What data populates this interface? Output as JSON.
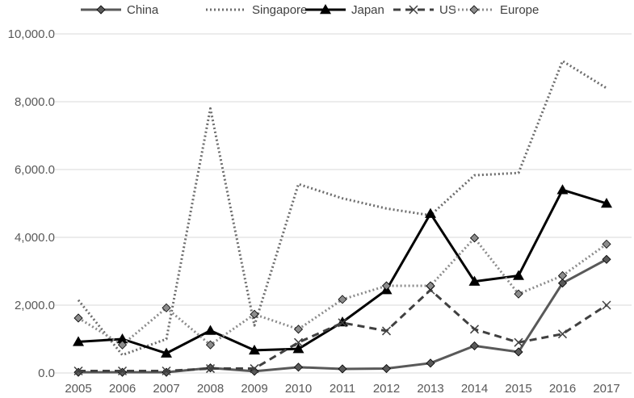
{
  "chart_data": {
    "type": "line",
    "title": "",
    "xlabel": "",
    "ylabel": "",
    "ylim": [
      0,
      10000
    ],
    "y_ticks": [
      "0.0",
      "2,000.0",
      "4,000.0",
      "6,000.0",
      "8,000.0",
      "10,000.0"
    ],
    "y_tick_values": [
      0,
      2000,
      4000,
      6000,
      8000,
      10000
    ],
    "categories": [
      "2005",
      "2006",
      "2007",
      "2008",
      "2009",
      "2010",
      "2011",
      "2012",
      "2013",
      "2014",
      "2015",
      "2016",
      "2017"
    ],
    "grid": "horizontal",
    "legend_position": "top",
    "series": [
      {
        "name": "China",
        "color": "#595959",
        "style": "solid",
        "marker": "diamond",
        "values": [
          20,
          20,
          20,
          150,
          50,
          170,
          120,
          130,
          290,
          800,
          620,
          2650,
          3350
        ]
      },
      {
        "name": "Singapore",
        "color": "#6d6d6d",
        "style": "dotted",
        "marker": "none",
        "values": [
          2150,
          530,
          1000,
          7800,
          1400,
          5570,
          5150,
          4850,
          4650,
          5830,
          5900,
          9200,
          8400
        ]
      },
      {
        "name": "Japan",
        "color": "#000000",
        "style": "solid",
        "marker": "triangle",
        "values": [
          920,
          1000,
          580,
          1250,
          670,
          710,
          1500,
          2450,
          4700,
          2700,
          2870,
          5400,
          5000
        ]
      },
      {
        "name": "US",
        "color": "#404040",
        "style": "dashed",
        "marker": "x",
        "values": [
          60,
          60,
          60,
          130,
          130,
          900,
          1480,
          1240,
          2450,
          1290,
          900,
          1150,
          2000
        ]
      },
      {
        "name": "Europe",
        "color": "#8c8c8c",
        "style": "dotted",
        "marker": "diamond",
        "values": [
          1620,
          830,
          1920,
          830,
          1730,
          1290,
          2170,
          2570,
          2570,
          3980,
          2330,
          2870,
          3800
        ]
      }
    ]
  }
}
